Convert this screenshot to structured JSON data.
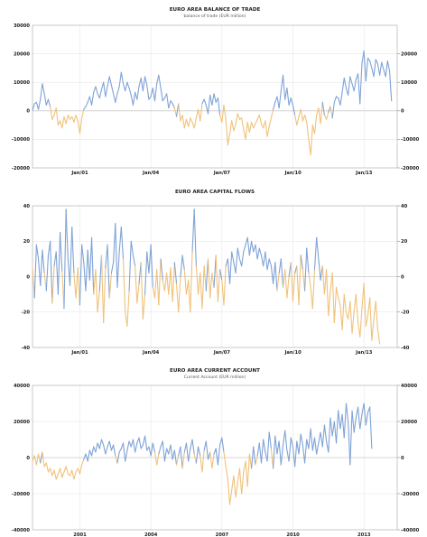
{
  "colors": {
    "positive": "#7fa3d6",
    "negative": "#f0c27a",
    "grid": "#e6e6e6",
    "frame": "#bdbdbd"
  },
  "chart_data": [
    {
      "type": "line",
      "title": "EURO AREA BALANCE OF TRADE",
      "subtitle": "balance of trade (EUR million)",
      "xlabel": "",
      "ylabel": "",
      "x_start": 1999.0,
      "x_step": 0.0833,
      "xlim": [
        1999.0,
        2014.4
      ],
      "ylim": [
        -20000,
        30000
      ],
      "yticks_left": [
        "30000",
        "20000",
        "10000",
        "0",
        "-10000",
        "-20000"
      ],
      "yticks_right": [
        "20000",
        "10000",
        "0",
        "-10000",
        "-20000"
      ],
      "ytick_values_left": [
        30000,
        20000,
        10000,
        0,
        -10000,
        -20000
      ],
      "ytick_values_right": [
        20000,
        10000,
        0,
        -10000,
        -20000
      ],
      "xticks": [
        "Jan/01",
        "Jan/04",
        "Jan/07",
        "Jan/10",
        "Jan/13"
      ],
      "xtick_values": [
        2001.0,
        2004.0,
        2007.0,
        2010.0,
        2013.0
      ],
      "grid": true,
      "series": [
        {
          "values": [
            200,
            2500,
            3000,
            500,
            4000,
            9500,
            6000,
            2000,
            4000,
            1500,
            -3000,
            -1500,
            1000,
            -5000,
            -3500,
            -6000,
            -2000,
            -4500,
            -1500,
            -3000,
            -2000,
            -4000,
            -1500,
            -3500,
            -8000,
            -2500,
            500,
            1500,
            3000,
            5000,
            2000,
            6500,
            8500,
            6000,
            4500,
            7500,
            10000,
            5000,
            8500,
            12000,
            9000,
            6000,
            3000,
            6000,
            8500,
            13500,
            9500,
            7000,
            10000,
            8000,
            5500,
            2000,
            6500,
            4000,
            8500,
            11500,
            7000,
            12000,
            9000,
            4000,
            5000,
            8000,
            3500,
            9500,
            12500,
            8000,
            3500,
            4500,
            6000,
            1000,
            3500,
            2500,
            1000,
            -2000,
            2500,
            -3500,
            -1500,
            -6000,
            -3000,
            -5500,
            -2500,
            -4000,
            -6000,
            -2500,
            500,
            -3500,
            2500,
            4000,
            2000,
            -1000,
            5500,
            2000,
            6000,
            3000,
            4500,
            -1500,
            -4000,
            2000,
            -3000,
            -12000,
            -8000,
            -3500,
            -7000,
            -4500,
            -1000,
            -3000,
            -2500,
            -6500,
            -10000,
            -4000,
            -7500,
            -4000,
            -6000,
            -4500,
            -3000,
            -1500,
            -4500,
            -6000,
            -3500,
            -9000,
            -5500,
            -2500,
            500,
            3000,
            5000,
            1000,
            7000,
            12500,
            4000,
            8000,
            2000,
            4500,
            2000,
            -1500,
            -5000,
            -2000,
            500,
            -3500,
            -1500,
            -4000,
            -10000,
            -15500,
            -5000,
            -8000,
            -1500,
            1000,
            -4500,
            3000,
            -1500,
            -3000,
            -500,
            1500,
            -2500,
            3000,
            5000,
            4500,
            2000,
            6500,
            11500,
            8000,
            5500,
            12000,
            9500,
            7000,
            11000,
            13000,
            2500,
            16500,
            21000,
            10500,
            18500,
            17500,
            15000,
            12000,
            18000,
            16500,
            12500,
            17000,
            14500,
            12000,
            17500,
            14000,
            3500
          ]
        }
      ]
    },
    {
      "type": "line",
      "title": "EURO AREA CAPITAL FLOWS",
      "subtitle": "",
      "xlabel": "",
      "ylabel": "",
      "x_start": 1999.0,
      "x_step": 0.0833,
      "xlim": [
        1999.0,
        2014.4
      ],
      "ylim": [
        -40,
        40
      ],
      "yticks_left": [
        "40",
        "20",
        "0",
        "-20",
        "-40"
      ],
      "yticks_right": [
        "40",
        "20",
        "0",
        "-20",
        "-40"
      ],
      "ytick_values_left": [
        40,
        20,
        0,
        -20,
        -40
      ],
      "ytick_values_right": [
        40,
        20,
        0,
        -20,
        -40
      ],
      "xticks": [
        "Jan/01",
        "Jan/04",
        "Jan/07",
        "Jan/10",
        "Jan/13"
      ],
      "xtick_values": [
        2001.0,
        2004.0,
        2007.0,
        2010.0,
        2013.0
      ],
      "grid": true,
      "series": [
        {
          "values": [
            5,
            -12,
            18,
            10,
            -5,
            15,
            2,
            -8,
            12,
            20,
            -15,
            6,
            14,
            -10,
            25,
            3,
            -18,
            38,
            10,
            -5,
            28,
            2,
            -12,
            5,
            -16,
            18,
            8,
            -8,
            15,
            -2,
            22,
            -10,
            4,
            -20,
            -8,
            12,
            -26,
            5,
            18,
            -12,
            2,
            8,
            30,
            -6,
            14,
            28,
            10,
            -20,
            -28,
            -8,
            20,
            12,
            6,
            -15,
            -4,
            8,
            -24,
            -10,
            14,
            2,
            18,
            -6,
            -12,
            4,
            -16,
            10,
            -2,
            -8,
            2,
            -10,
            5,
            -14,
            8,
            -4,
            -20,
            0,
            12,
            4,
            -10,
            -2,
            -20,
            14,
            38,
            6,
            -10,
            2,
            -18,
            6,
            -8,
            10,
            -12,
            2,
            -6,
            12,
            -14,
            4,
            -2,
            -16,
            6,
            10,
            -4,
            14,
            8,
            2,
            16,
            10,
            6,
            14,
            18,
            22,
            12,
            20,
            14,
            18,
            10,
            16,
            12,
            6,
            14,
            4,
            10,
            6,
            -4,
            8,
            -8,
            2,
            10,
            -6,
            4,
            -12,
            0,
            8,
            -14,
            2,
            6,
            -16,
            12,
            4,
            -8,
            16,
            2,
            -6,
            -18,
            4,
            22,
            10,
            -2,
            6,
            -10,
            4,
            -22,
            -8,
            2,
            -26,
            -6,
            -12,
            -16,
            -30,
            -10,
            -20,
            -24,
            -14,
            -32,
            -20,
            -10,
            -26,
            -34,
            -18,
            -4,
            -28,
            -22,
            -12,
            -36,
            -24,
            -14,
            -30,
            -38
          ]
        }
      ]
    },
    {
      "type": "line",
      "title": "EURO AREA CURRENT ACCOUNT",
      "subtitle": "Current Account (EUR million)",
      "xlabel": "",
      "ylabel": "",
      "x_start": 1999.0,
      "x_step": 0.0833,
      "xlim": [
        1999.0,
        2014.4
      ],
      "ylim": [
        -40000,
        40000
      ],
      "yticks_left": [
        "40000",
        "20000",
        "0",
        "-20000",
        "-40000"
      ],
      "yticks_right": [
        "40000",
        "20000",
        "0",
        "-20000",
        "-40000"
      ],
      "ytick_values_left": [
        40000,
        20000,
        0,
        -20000,
        -40000
      ],
      "ytick_values_right": [
        40000,
        20000,
        0,
        -20000,
        -40000
      ],
      "xticks": [
        "2001",
        "2004",
        "2007",
        "2010",
        "2013"
      ],
      "xtick_values": [
        2001.0,
        2004.0,
        2007.0,
        2010.0,
        2013.0
      ],
      "grid": true,
      "series": [
        {
          "values": [
            -2000,
            1000,
            -4000,
            2000,
            -3000,
            3000,
            -5000,
            -3000,
            -8000,
            -6000,
            -10000,
            -7000,
            -12000,
            -9000,
            -6000,
            -11000,
            -8000,
            -5000,
            -9000,
            -10000,
            -7000,
            -12000,
            -8000,
            -6000,
            -9000,
            -4000,
            -1000,
            2000,
            -2000,
            4000,
            1000,
            6000,
            3000,
            8000,
            5000,
            10000,
            7000,
            2000,
            6000,
            9000,
            4000,
            7000,
            1000,
            -3000,
            3000,
            5000,
            8000,
            -2000,
            4000,
            9000,
            6000,
            10000,
            3000,
            8000,
            11000,
            5000,
            7000,
            12000,
            4000,
            6000,
            1000,
            8000,
            3000,
            -4000,
            2000,
            6000,
            9000,
            -2000,
            5000,
            2000,
            7000,
            -1000,
            4000,
            -4000,
            1000,
            6000,
            -6000,
            3000,
            8000,
            -2000,
            5000,
            10000,
            2000,
            -3000,
            6000,
            1000,
            -8000,
            4000,
            9000,
            -1000,
            3000,
            -6000,
            2000,
            5000,
            -4000,
            7000,
            11000,
            3000,
            -5000,
            -12000,
            -26000,
            -18000,
            -10000,
            -22000,
            -14000,
            -6000,
            -20000,
            -8000,
            -2000,
            -16000,
            2000,
            -6000,
            6000,
            -4000,
            1000,
            8000,
            -3000,
            10000,
            3000,
            -2000,
            14000,
            5000,
            -6000,
            12000,
            2000,
            9000,
            -4000,
            7000,
            15000,
            4000,
            -2000,
            11000,
            6000,
            -5000,
            9000,
            2000,
            13000,
            7000,
            -3000,
            10000,
            5000,
            16000,
            4000,
            11000,
            2000,
            8000,
            14000,
            6000,
            18000,
            9000,
            3000,
            22000,
            12000,
            20000,
            8000,
            26000,
            16000,
            24000,
            11000,
            30000,
            20000,
            -4000,
            26000,
            14000,
            22000,
            28000,
            16000,
            24000,
            30000,
            18000,
            25000,
            28000,
            5000
          ]
        }
      ]
    }
  ]
}
